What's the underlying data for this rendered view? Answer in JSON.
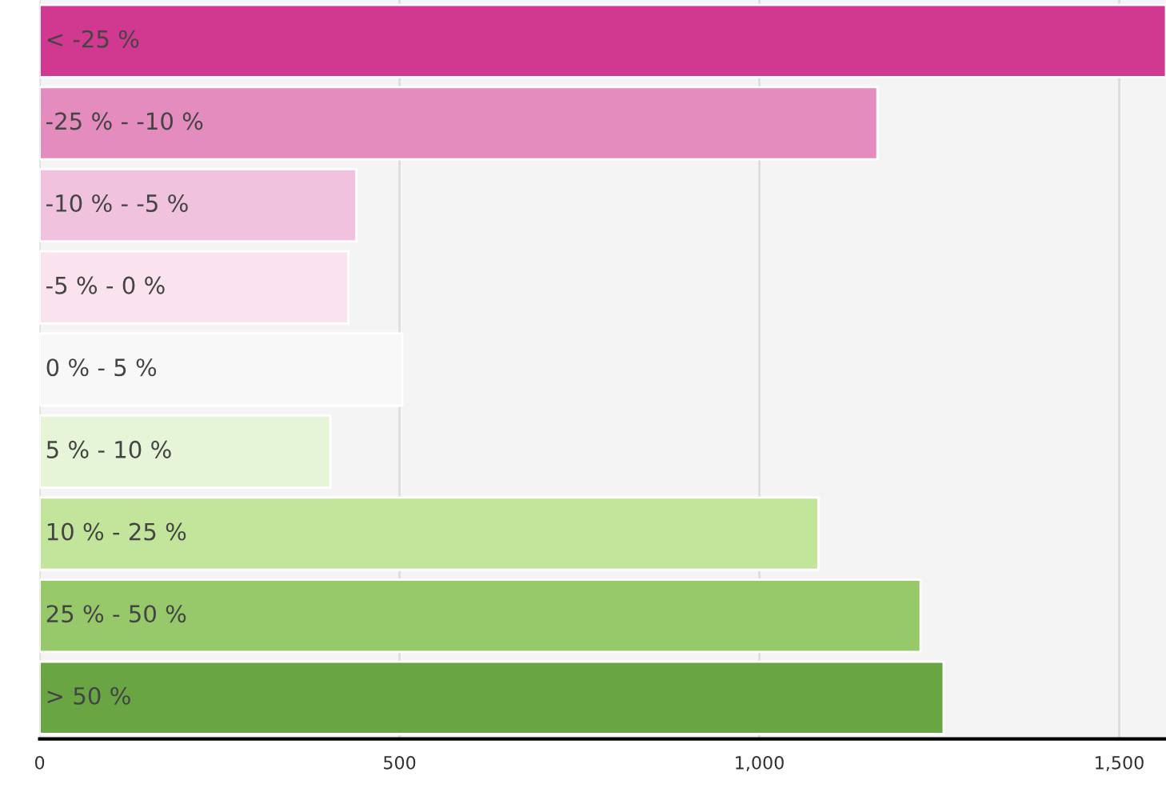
{
  "chart_data": {
    "type": "bar",
    "orientation": "horizontal",
    "categories": [
      "< -25 %",
      "-25 % - -10 %",
      "-10 % - -5 %",
      "-5 % - 0 %",
      "0 % - 5 %",
      "5 % - 10 %",
      "10 % - 25 %",
      "25 % - 50 %",
      "> 50 %"
    ],
    "values": [
      1565,
      1164,
      440,
      429,
      504,
      404,
      1082,
      1224,
      1256
    ],
    "colors": [
      "#d0398f",
      "#e48cbd",
      "#f0c2de",
      "#fbe2ef",
      "#f8f8f8",
      "#e6f4d8",
      "#c3e49b",
      "#97c869",
      "#6aa544"
    ],
    "xlim": [
      0,
      1565
    ],
    "xticks": [
      0,
      500,
      {
        "value": 1000,
        "label": "1,000"
      },
      {
        "value": 1500,
        "label": "1,500"
      }
    ],
    "grid": "x",
    "legend": false
  }
}
